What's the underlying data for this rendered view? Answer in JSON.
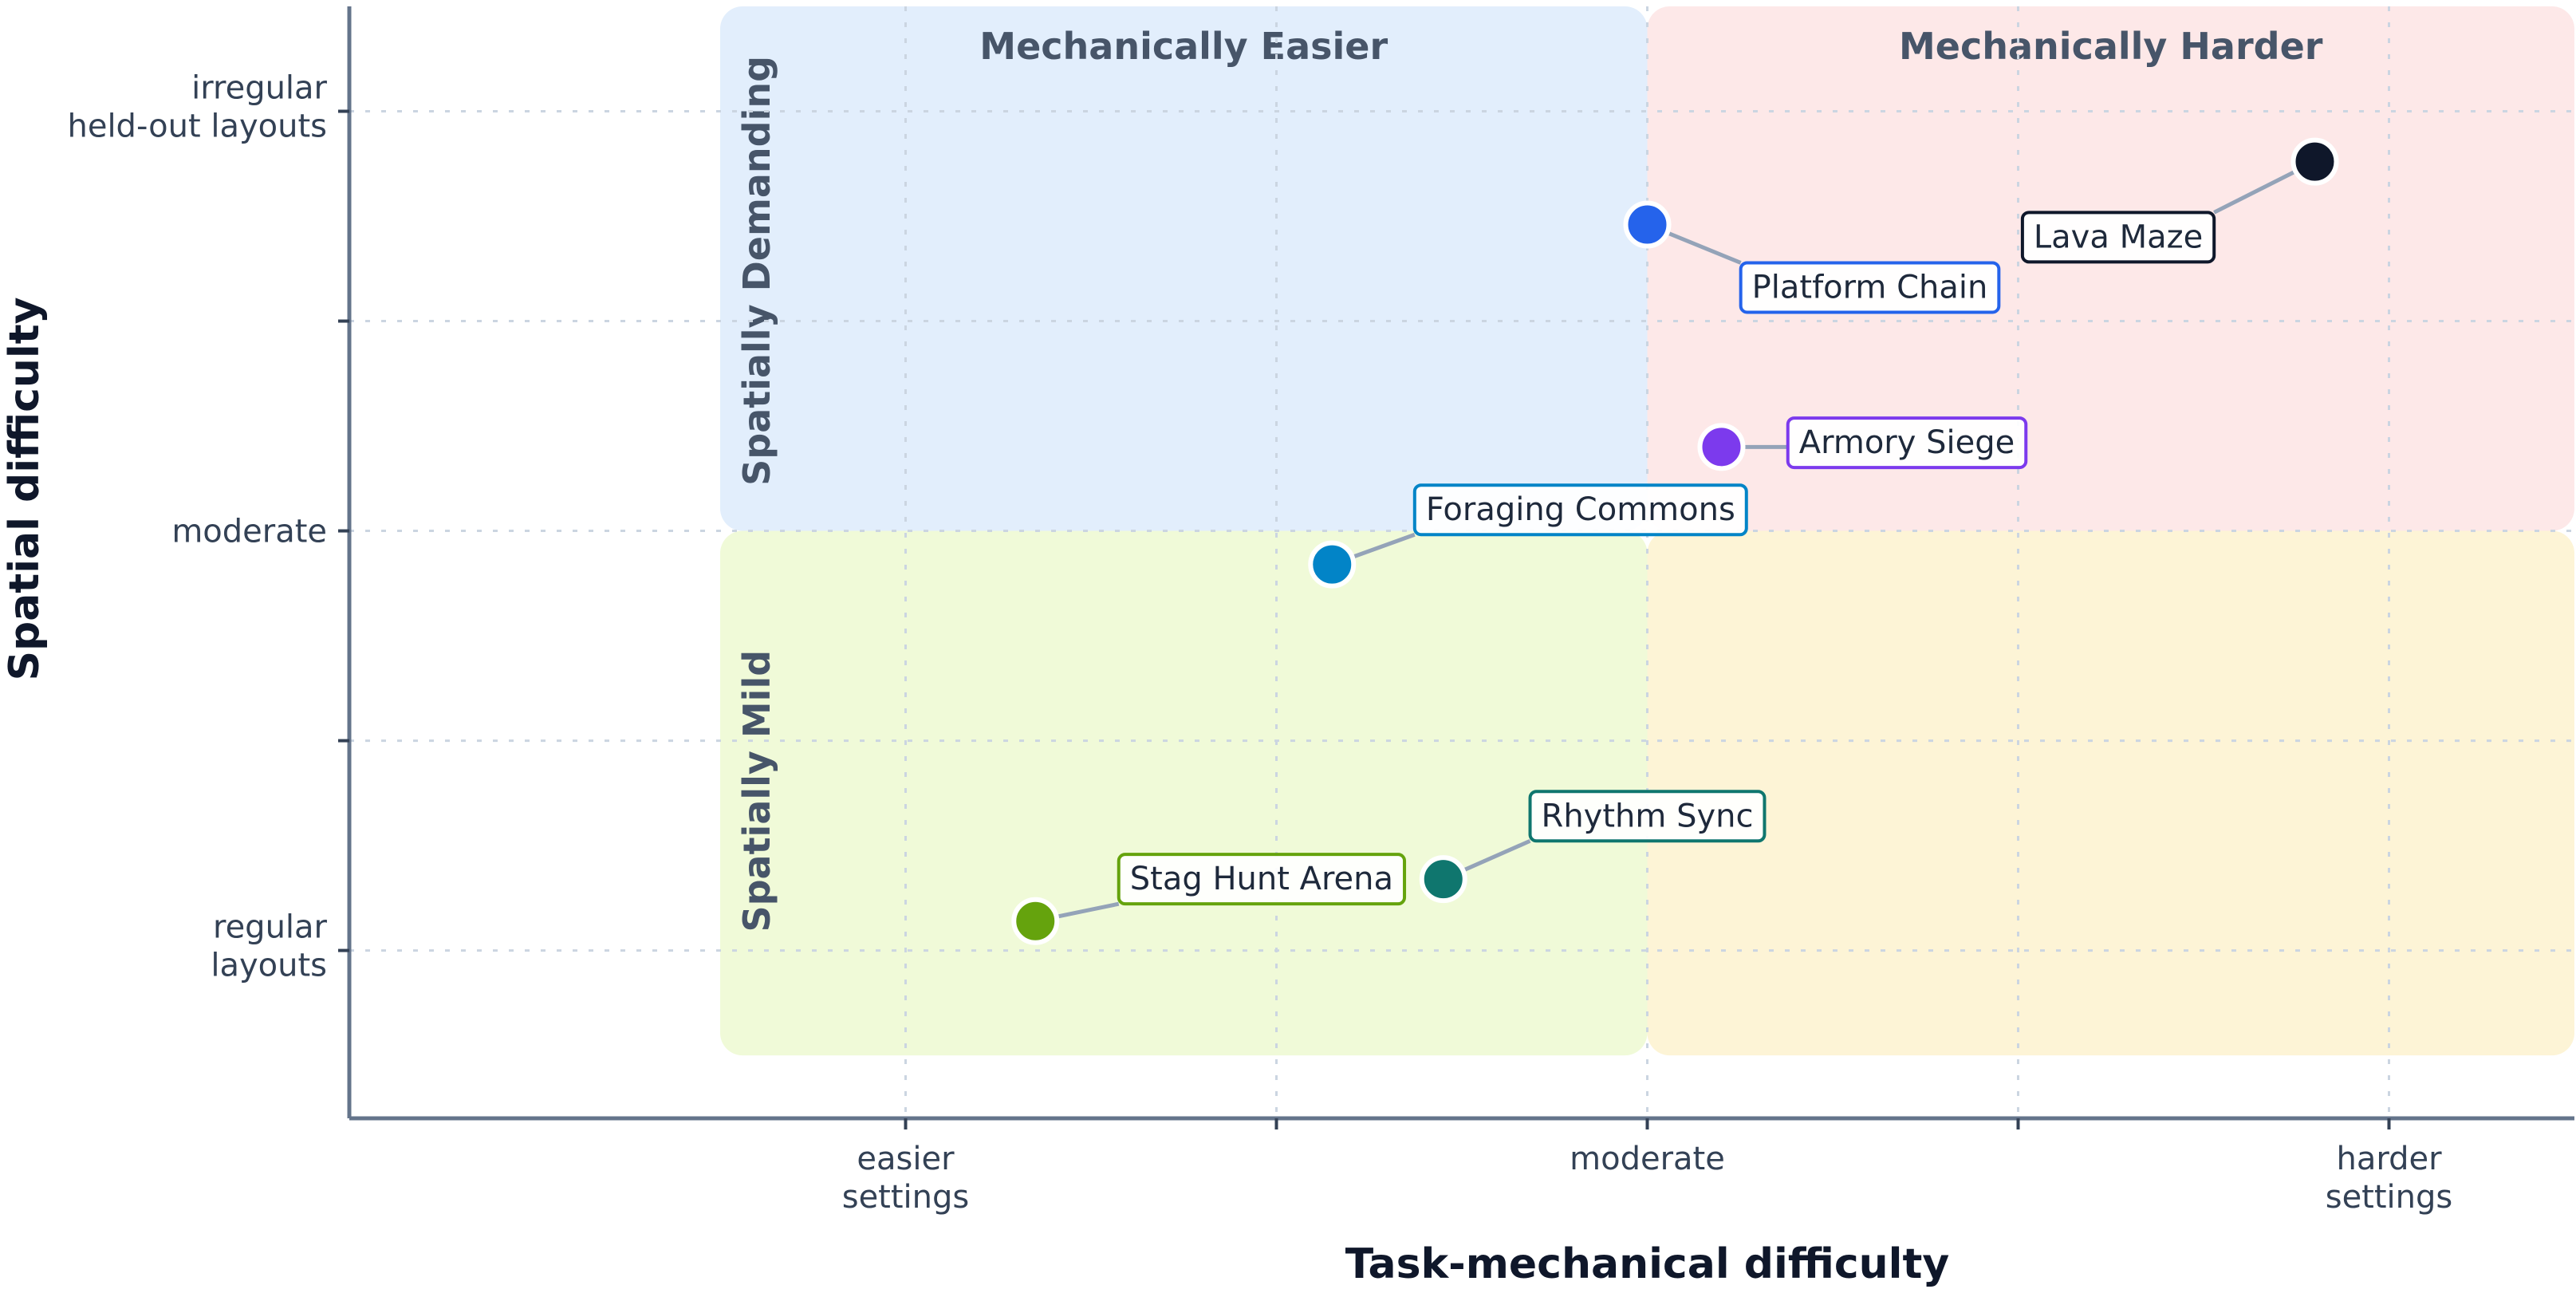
{
  "chart_data": {
    "type": "scatter",
    "xlabel": "Task-mechanical difficulty",
    "ylabel": "Spatial difficulty",
    "xlim": [
      -1.5,
      4.5
    ],
    "ylim": [
      -0.4,
      2.25
    ],
    "grid": true,
    "x_ticks": [
      0,
      1,
      2,
      3,
      4
    ],
    "y_ticks": [
      0,
      0.5,
      1,
      1.5,
      2
    ],
    "x_tick_labels": [
      {
        "value": 0,
        "lines": [
          "easier",
          "settings"
        ]
      },
      {
        "value": 2,
        "lines": [
          "moderate"
        ]
      },
      {
        "value": 4,
        "lines": [
          "harder",
          "settings"
        ]
      }
    ],
    "y_tick_labels": [
      {
        "value": 0,
        "lines": [
          "regular",
          "layouts"
        ]
      },
      {
        "value": 1,
        "lines": [
          "moderate"
        ]
      },
      {
        "value": 2,
        "lines": [
          "irregular",
          "held-out layouts"
        ]
      }
    ],
    "quadrants": [
      {
        "name": "Mechanically Easier",
        "x_range": [
          -0.5,
          2
        ],
        "y_range": [
          1,
          2.25
        ],
        "color": "#e2eefc",
        "title_pos": "top"
      },
      {
        "name": "Mechanically Harder",
        "x_range": [
          2,
          4.5
        ],
        "y_range": [
          1,
          2.25
        ],
        "color": "#fde8e8",
        "title_pos": "top"
      },
      {
        "name": "",
        "x_range": [
          -0.5,
          2
        ],
        "y_range": [
          -0.25,
          1
        ],
        "color": "#f0fad8",
        "title_pos": "none"
      },
      {
        "name": "",
        "x_range": [
          2,
          4.5
        ],
        "y_range": [
          -0.25,
          1
        ],
        "color": "#fdf4d6",
        "title_pos": "none"
      }
    ],
    "row_labels": [
      {
        "name": "Spatially Demanding",
        "y_center": 1.62
      },
      {
        "name": "Spatially Mild",
        "y_center": 0.38
      }
    ],
    "points": [
      {
        "name": "Lava Maze",
        "x": 3.8,
        "y": 1.88,
        "color": "#0f172a",
        "label_x": 3.27,
        "label_y": 1.7
      },
      {
        "name": "Platform Chain",
        "x": 2.0,
        "y": 1.73,
        "color": "#2563eb",
        "label_x": 2.6,
        "label_y": 1.58
      },
      {
        "name": "Armory Siege",
        "x": 2.2,
        "y": 1.2,
        "color": "#7c3aed",
        "label_x": 2.7,
        "label_y": 1.21
      },
      {
        "name": "Foraging Commons",
        "x": 1.15,
        "y": 0.92,
        "color": "#0284c7",
        "label_x": 1.82,
        "label_y": 1.05
      },
      {
        "name": "Rhythm Sync",
        "x": 1.45,
        "y": 0.17,
        "color": "#0f766e",
        "label_x": 2.0,
        "label_y": 0.32
      },
      {
        "name": "Stag Hunt Arena",
        "x": 0.35,
        "y": 0.07,
        "color": "#65a30d",
        "label_x": 0.96,
        "label_y": 0.17
      }
    ]
  }
}
